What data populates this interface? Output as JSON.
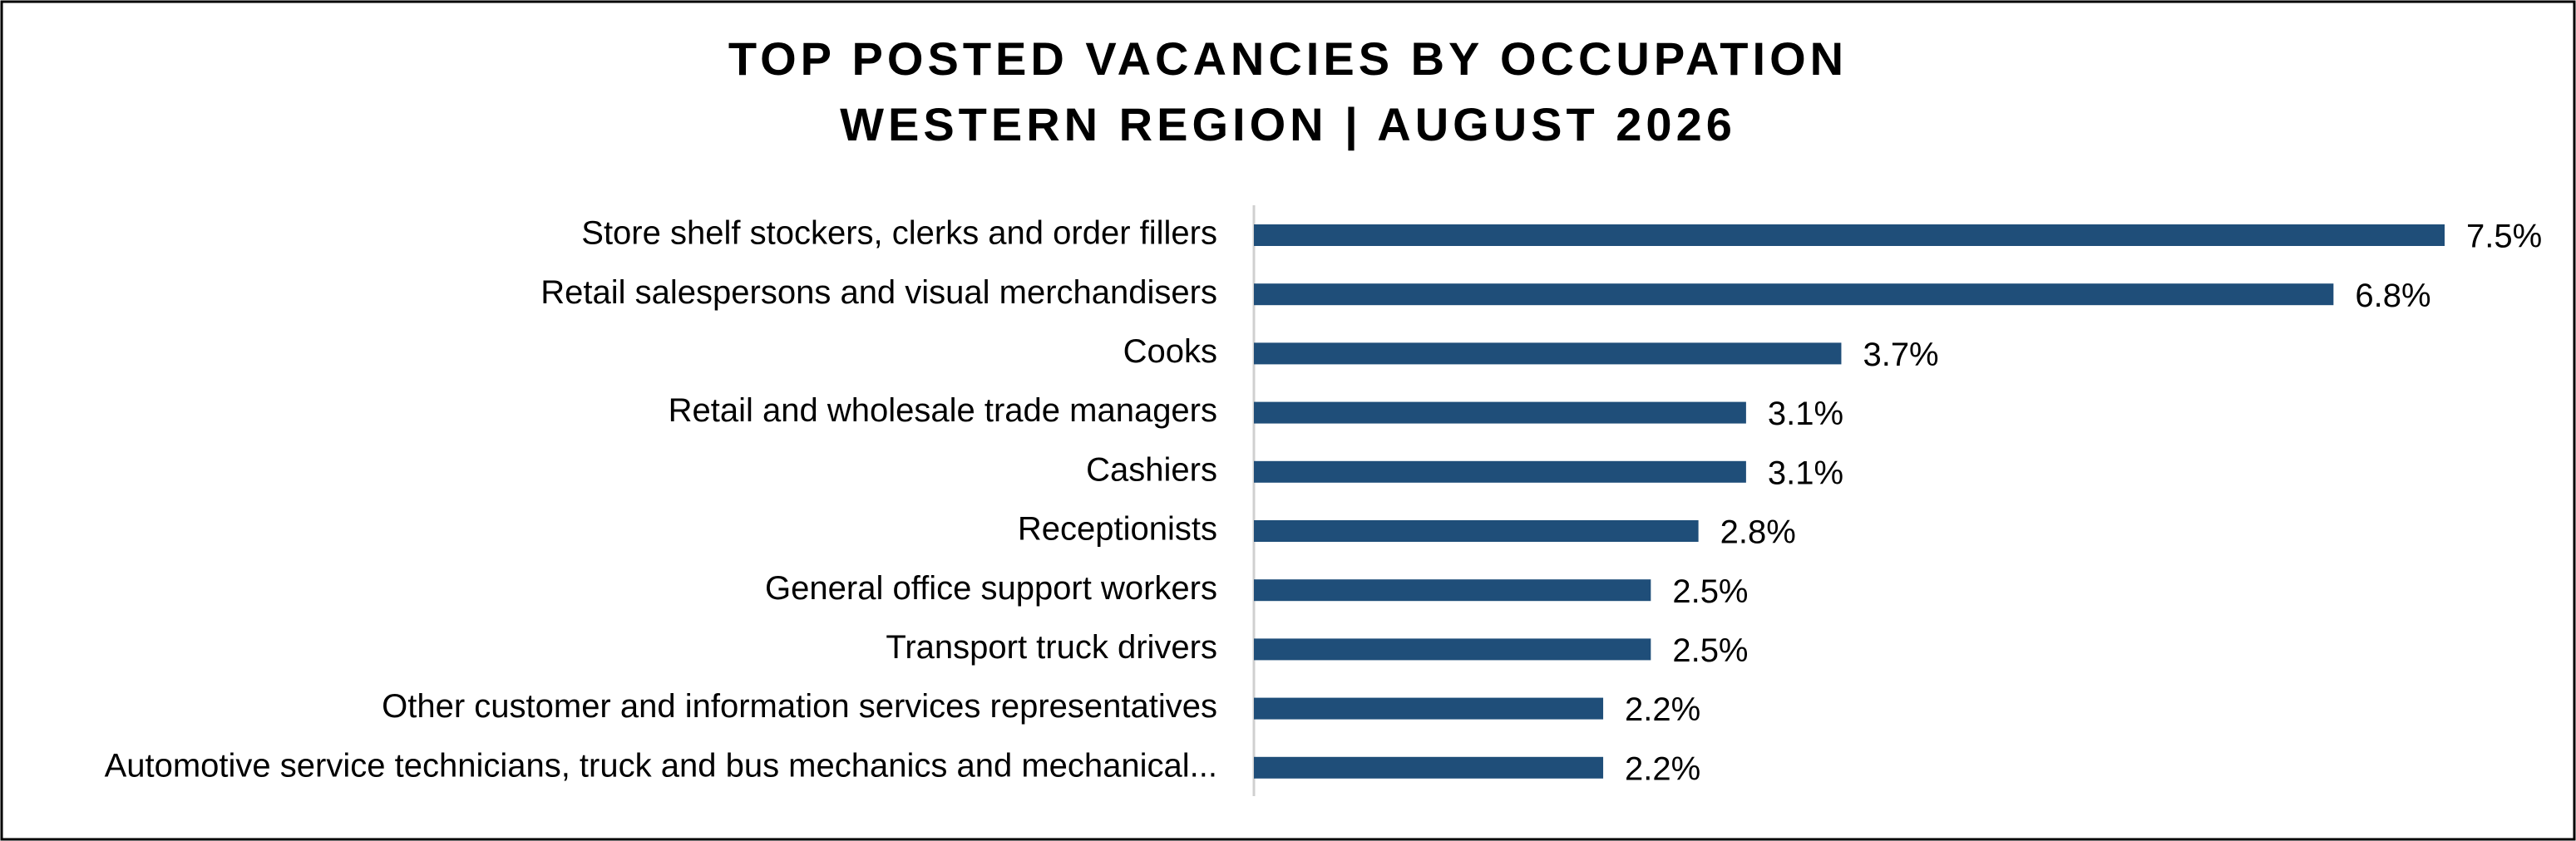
{
  "chart_data": {
    "type": "bar",
    "orientation": "horizontal",
    "title": "TOP POSTED VACANCIES BY OCCUPATION",
    "subtitle": "WESTERN REGION | AUGUST 2026",
    "categories": [
      "Store shelf stockers, clerks and order fillers",
      "Retail salespersons and visual merchandisers",
      "Cooks",
      "Retail and wholesale trade managers",
      "Cashiers",
      "Receptionists",
      "General office support workers",
      "Transport truck drivers",
      "Other customer and information services representatives",
      "Automotive service technicians, truck and bus mechanics and mechanical..."
    ],
    "values": [
      7.5,
      6.8,
      3.7,
      3.1,
      3.1,
      2.8,
      2.5,
      2.5,
      2.2,
      2.2
    ],
    "value_labels": [
      "7.5%",
      "6.8%",
      "3.7%",
      "3.1%",
      "3.1%",
      "2.8%",
      "2.5%",
      "2.5%",
      "2.2%",
      "2.2%"
    ],
    "color": "#1f4e79"
  }
}
